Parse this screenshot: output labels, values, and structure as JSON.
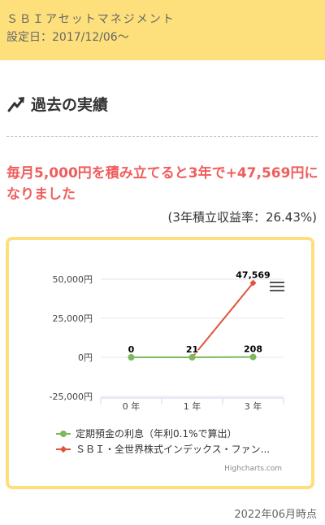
{
  "header": {
    "fund_name": "ＳＢＩアセットマネジメント",
    "set_date": "設定日：2017/12/06～"
  },
  "section": {
    "title": "過去の実績"
  },
  "headline": "毎月5,000円を積み立てると3年で+47,569円になりました",
  "rate": "(3年積立収益率：26.43%)",
  "chart_data": {
    "type": "line",
    "categories": [
      "0 年",
      "1 年",
      "3 年"
    ],
    "y_ticks": [
      "50,000円",
      "25,000円",
      "0円",
      "-25,000円"
    ],
    "ylim": [
      -25000,
      50000
    ],
    "series": [
      {
        "name": "定期預金の利息（年利0.1%で算出）",
        "color": "#7cb85c",
        "values": [
          0,
          21,
          208
        ],
        "labels": [
          "0",
          "21",
          "208"
        ]
      },
      {
        "name": "ＳＢＩ・全世界株式インデックス・ファン...",
        "color": "#e0533c",
        "values": [
          0,
          0,
          47569
        ],
        "labels": [
          "",
          "",
          "47,569"
        ]
      }
    ],
    "credit": "Highcharts.com"
  },
  "footer": {
    "as_of": "2022年06月時点"
  }
}
